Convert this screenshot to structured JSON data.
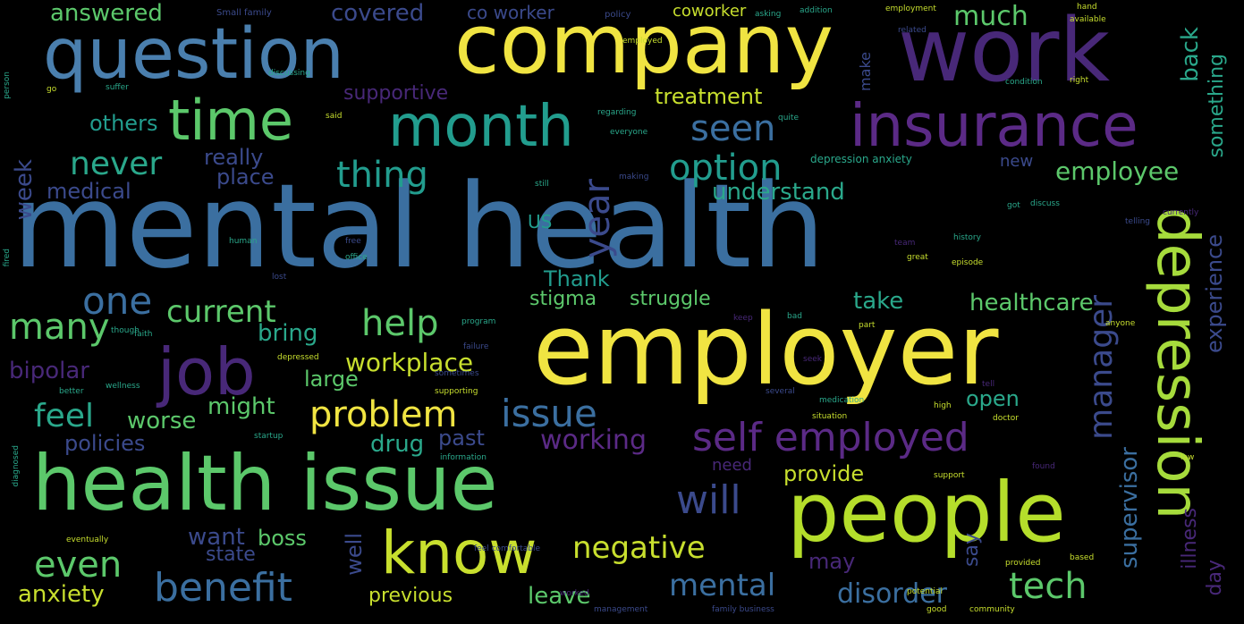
{
  "colors": {
    "background": "#000000",
    "yellow": "#f0e442",
    "lightgreen": "#a6db3c",
    "green": "#5cc86b",
    "teal": "#2aa88b",
    "cyan": "#229d8e",
    "blue": "#3b6fa0",
    "steel": "#4a7fae",
    "indigo": "#3b4a8c",
    "purple": "#482878",
    "violet": "#5b2a86"
  },
  "words": {
    "mental_health": "mental health",
    "employer": "employer",
    "company": "company",
    "work": "work",
    "question": "question",
    "health_issue": "health issue",
    "people": "people",
    "insurance": "insurance",
    "depression": "depression",
    "job": "job",
    "month": "month",
    "time": "time",
    "know": "know",
    "self_employed": "self employed",
    "benefit": "benefit",
    "problem": "problem",
    "issue": "issue",
    "year": "year",
    "manager": "manager",
    "option": "option",
    "thing": "thing",
    "seen": "seen",
    "never": "never",
    "help": "help",
    "even": "even",
    "tech": "tech",
    "negative": "negative",
    "will": "will",
    "feel": "feel",
    "many": "many",
    "one": "one",
    "current": "current",
    "healthcare": "healthcare",
    "employee": "employee",
    "understand": "understand",
    "workplace": "workplace",
    "working": "working",
    "mental": "mental",
    "disorder": "disorder",
    "anxiety": "anxiety",
    "supervisor": "supervisor",
    "experience": "experience",
    "something": "something",
    "much": "much",
    "back": "back",
    "treatment": "treatment",
    "answered": "answered",
    "covered": "covered",
    "co_worker": "co worker",
    "coworker": "coworker",
    "supportive": "supportive",
    "others": "others",
    "really": "really",
    "place": "place",
    "medical": "medical",
    "week": "week",
    "thank": "Thank",
    "us": "US",
    "stigma": "stigma",
    "struggle": "struggle",
    "take": "take",
    "bring": "bring",
    "bipolar": "bipolar",
    "large": "large",
    "might": "might",
    "worse": "worse",
    "policies": "policies",
    "drug": "drug",
    "past": "past",
    "open": "open",
    "provide": "provide",
    "need": "need",
    "want": "want",
    "boss": "boss",
    "state": "state",
    "well": "well",
    "say": "say",
    "may": "may",
    "day": "day",
    "illness": "illness",
    "previous": "previous",
    "leave": "leave",
    "new": "new",
    "make": "make",
    "small_family": "Small family",
    "policy": "policy",
    "depression_anxiety": "depression anxiety",
    "employment": "employment",
    "available": "available",
    "condition": "condition",
    "regarding": "regarding",
    "everyone": "everyone",
    "discussing": "discussing",
    "history": "history",
    "currently": "currently",
    "great": "great",
    "office": "office",
    "program": "program",
    "feel_comfortable": "feel comfortable",
    "family_business": "family business",
    "information": "information",
    "diagnosed": "diagnosed",
    "management": "management",
    "support": "support",
    "provided": "provided",
    "community": "community",
    "based": "based",
    "medication": "medication",
    "situation": "situation",
    "several": "several",
    "eventually": "eventually",
    "good": "good",
    "wellness": "wellness",
    "better": "better",
    "depressed": "depressed",
    "startup": "startup",
    "addition": "addition",
    "asking": "asking",
    "team": "team",
    "human": "human",
    "found": "found",
    "doctor": "doctor",
    "high": "high",
    "tell": "tell",
    "bad": "bad",
    "part": "part",
    "keep": "keep",
    "anyone": "anyone",
    "discuss": "discuss",
    "got": "got",
    "telling": "telling",
    "still": "still",
    "worked": "worked",
    "person": "person",
    "suffer": "suffer",
    "making": "making",
    "though": "though",
    "failure": "failure",
    "potential": "potential",
    "fired": "fired",
    "lost": "lost",
    "sometimes": "sometimes",
    "supporting": "supporting",
    "faith": "faith",
    "seek": "seek",
    "employed": "employed",
    "related": "related",
    "quite": "quite",
    "hand": "hand",
    "said": "said",
    "free": "free",
    "episode": "episode",
    "law": "law",
    "go": "go",
    "right": "right"
  }
}
